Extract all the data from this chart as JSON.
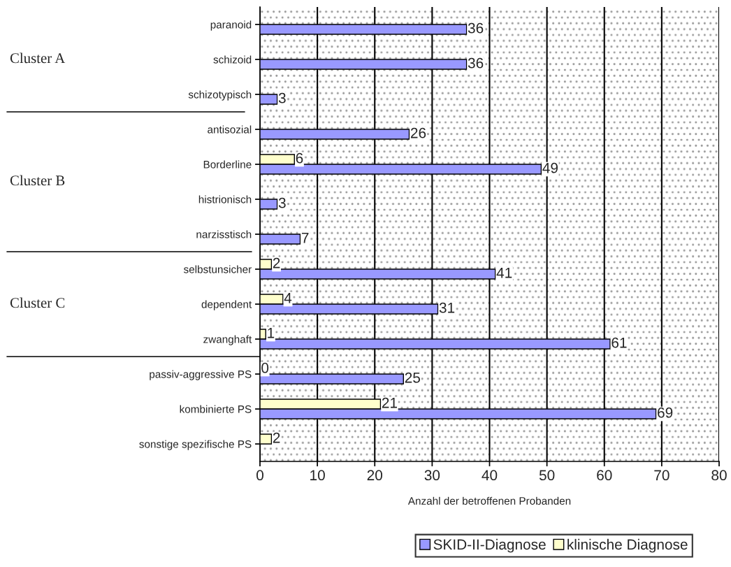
{
  "chart_data": {
    "type": "bar",
    "orientation": "horizontal",
    "categories": [
      "paranoid",
      "schizoid",
      "schizotypisch",
      "antisozial",
      "Borderline",
      "histrionisch",
      "narzisstisch",
      "selbstunsicher",
      "dependent",
      "zwanghaft",
      "passiv-aggressive PS",
      "kombinierte PS",
      "sonstige spezifische PS"
    ],
    "series": [
      {
        "name": "klinische Diagnose",
        "color": "#ffffcc",
        "values": [
          null,
          null,
          null,
          null,
          6,
          null,
          null,
          2,
          4,
          1,
          0,
          21,
          2
        ]
      },
      {
        "name": "SKID-II-Diagnose",
        "color": "#9999ff",
        "values": [
          36,
          36,
          3,
          26,
          49,
          3,
          7,
          41,
          31,
          61,
          25,
          69,
          null
        ]
      }
    ],
    "xlabel": "Anzahl der betroffenen Probanden",
    "xlim": [
      0,
      80
    ],
    "xticks": [
      0,
      10,
      20,
      30,
      40,
      50,
      60,
      70,
      80
    ],
    "grid": "x",
    "legend": "bottom",
    "data_labels": true,
    "annotations": [
      "Cluster A",
      "Cluster B",
      "Cluster C"
    ]
  }
}
